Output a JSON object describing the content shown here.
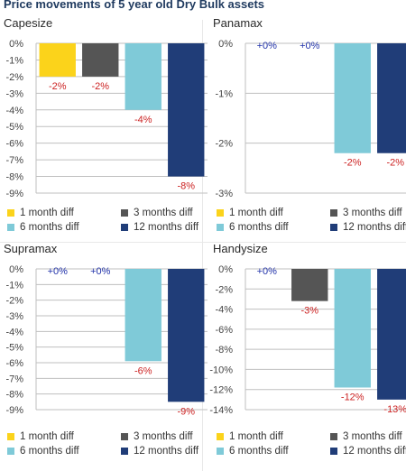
{
  "title": "Price movements of 5 year old Dry Bulk assets",
  "colors": {
    "1m": "#fbd31b",
    "3m": "#555555",
    "6m": "#7fcad8",
    "12m": "#203d78",
    "positive_label": "#2233aa",
    "negative_label": "#cc2222",
    "grid": "#bfbfbf"
  },
  "legend": [
    "1 month diff",
    "3 months diff",
    "6 months diff",
    "12 months diff"
  ],
  "chart_data": [
    {
      "type": "bar",
      "title": "Capesize",
      "categories": [
        "1 month diff",
        "3 months diff",
        "6 months diff",
        "12 months diff"
      ],
      "values": [
        -2,
        -2,
        -4,
        -8
      ],
      "data_labels": [
        "-2%",
        "-2%",
        "-4%",
        "-8%"
      ],
      "ylim": [
        -9,
        0
      ],
      "yticks": [
        "0%",
        "-1%",
        "-2%",
        "-3%",
        "-4%",
        "-5%",
        "-6%",
        "-7%",
        "-8%",
        "-9%"
      ],
      "grid": true,
      "legend_position": "bottom"
    },
    {
      "type": "bar",
      "title": "Panamax",
      "categories": [
        "1 month diff",
        "3 months diff",
        "6 months diff",
        "12 months diff"
      ],
      "values": [
        0,
        0,
        -2.2,
        -2.2
      ],
      "data_labels": [
        "+0%",
        "+0%",
        "-2%",
        "-2%"
      ],
      "ylim": [
        -3,
        0
      ],
      "yticks": [
        "0%",
        "-1%",
        "-2%",
        "-3%"
      ],
      "grid": true,
      "legend_position": "bottom"
    },
    {
      "type": "bar",
      "title": "Supramax",
      "categories": [
        "1 month diff",
        "3 months diff",
        "6 months diff",
        "12 months diff"
      ],
      "values": [
        0,
        0,
        -5.9,
        -8.5
      ],
      "data_labels": [
        "+0%",
        "+0%",
        "-6%",
        "-9%"
      ],
      "ylim": [
        -9,
        0
      ],
      "yticks": [
        "0%",
        "-1%",
        "-2%",
        "-3%",
        "-4%",
        "-5%",
        "-6%",
        "-7%",
        "-8%",
        "-9%"
      ],
      "grid": true,
      "legend_position": "bottom"
    },
    {
      "type": "bar",
      "title": "Handysize",
      "categories": [
        "1 month diff",
        "3 months diff",
        "6 months diff",
        "12 months diff"
      ],
      "values": [
        0,
        -3.2,
        -11.8,
        -13
      ],
      "data_labels": [
        "+0%",
        "-3%",
        "-12%",
        "-13%"
      ],
      "ylim": [
        -14,
        0
      ],
      "yticks": [
        "0%",
        "-2%",
        "-4%",
        "-6%",
        "-8%",
        "-10%",
        "-12%",
        "-14%"
      ],
      "grid": true,
      "legend_position": "bottom"
    }
  ]
}
